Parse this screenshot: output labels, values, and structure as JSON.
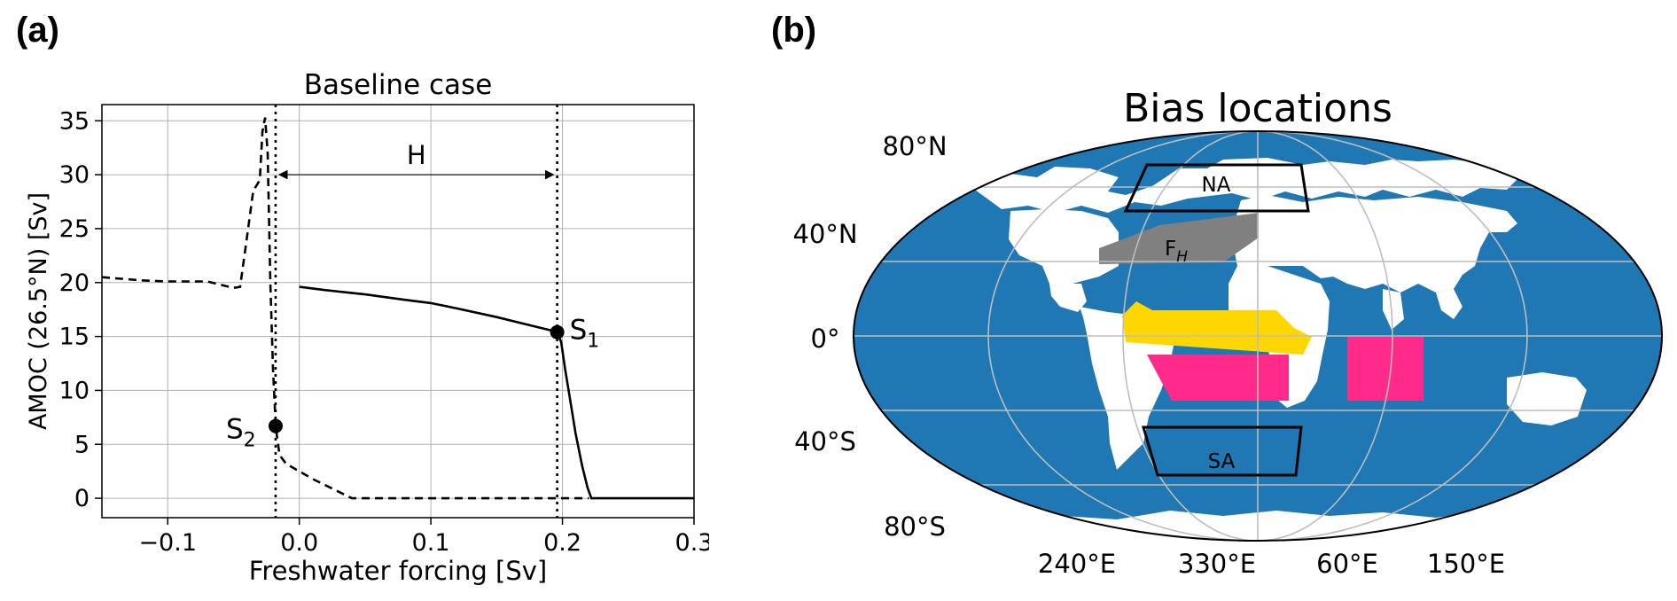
{
  "panel_a": {
    "label": "(a)"
  },
  "panel_b": {
    "label": "(b)"
  },
  "chart_data": [
    {
      "type": "line",
      "title": "Baseline case",
      "xlabel": "Freshwater forcing [Sv]",
      "ylabel": "AMOC (26.5°N) [Sv]",
      "xlim": [
        -0.15,
        0.3
      ],
      "ylim": [
        -1.8,
        36.5
      ],
      "xticks": [
        -0.1,
        0.0,
        0.1,
        0.2,
        0.3
      ],
      "xtick_labels": [
        "−0.1",
        "0.0",
        "0.1",
        "0.2",
        "0.3"
      ],
      "yticks": [
        0,
        5,
        10,
        15,
        20,
        25,
        30,
        35
      ],
      "ytick_labels": [
        "0",
        "5",
        "10",
        "15",
        "20",
        "25",
        "30",
        "35"
      ],
      "grid": true,
      "series": [
        {
          "style": "solid",
          "color": "#000000",
          "x": [
            0.0,
            0.02,
            0.05,
            0.08,
            0.1,
            0.12,
            0.15,
            0.17,
            0.19,
            0.196,
            0.199,
            0.202,
            0.206,
            0.21,
            0.215,
            0.219,
            0.222,
            0.23,
            0.3
          ],
          "y": [
            19.6,
            19.3,
            18.9,
            18.4,
            18.1,
            17.6,
            16.8,
            16.2,
            15.6,
            15.4,
            14.5,
            12.0,
            9.0,
            6.0,
            3.0,
            1.0,
            0.0,
            0.0,
            0.0
          ]
        },
        {
          "style": "dashed",
          "color": "#000000",
          "x": [
            -0.15,
            -0.12,
            -0.1,
            -0.07,
            -0.05,
            -0.045,
            -0.04,
            -0.035,
            -0.03,
            -0.028,
            -0.026,
            -0.024,
            -0.022,
            -0.02,
            -0.018,
            -0.017,
            -0.015,
            -0.01,
            0.0,
            0.01,
            0.02,
            0.03,
            0.04,
            0.05,
            0.1,
            0.15,
            0.2,
            0.22
          ],
          "y": [
            20.5,
            20.2,
            20.1,
            20.1,
            19.5,
            19.6,
            24.0,
            28.5,
            29.5,
            34.0,
            35.3,
            32.0,
            20.0,
            12.0,
            7.0,
            5.8,
            4.0,
            3.2,
            2.5,
            1.8,
            1.2,
            0.6,
            0.0,
            0.0,
            0.0,
            0.0,
            0.0,
            0.0
          ]
        }
      ],
      "vlines": [
        -0.018,
        0.196
      ],
      "points": [
        {
          "name": "S₁",
          "label_main": "S",
          "label_sub": "1",
          "x": 0.196,
          "y": 15.4
        },
        {
          "name": "S₂",
          "label_main": "S",
          "label_sub": "2",
          "x": -0.018,
          "y": 6.7
        }
      ],
      "annotation": {
        "text": "H",
        "x_from": -0.018,
        "x_to": 0.196,
        "y": 30.0
      }
    },
    {
      "type": "map",
      "title": "Bias locations",
      "ocean_color": "#1f77b4",
      "land_color": "#ffffff",
      "lat_labels": [
        "80°N",
        "40°N",
        "0°",
        "40°S",
        "80°S"
      ],
      "lon_labels": [
        "240°E",
        "330°E",
        "60°E",
        "150°E"
      ],
      "regions": [
        {
          "name": "NA",
          "label": "NA",
          "style": "outline",
          "color": "#000000"
        },
        {
          "name": "F_H",
          "label_main": "F",
          "label_sub": "H",
          "style": "fill",
          "color": "#808080"
        },
        {
          "name": "tropical-atlantic",
          "label": "",
          "style": "fill",
          "color": "#ffd700"
        },
        {
          "name": "south-atlantic-africa",
          "label": "",
          "style": "fill",
          "color": "#ff2a8a"
        },
        {
          "name": "indian-ocean",
          "label": "",
          "style": "fill",
          "color": "#ff2a8a"
        },
        {
          "name": "SA",
          "label": "SA",
          "style": "outline",
          "color": "#000000"
        }
      ]
    }
  ]
}
